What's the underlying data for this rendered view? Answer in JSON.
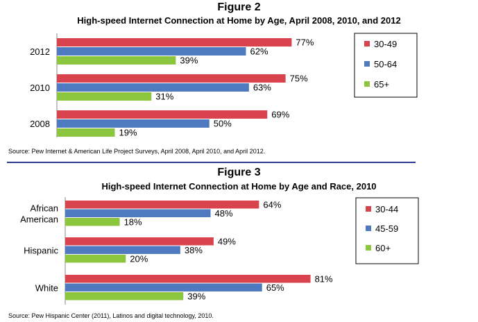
{
  "chart_data": [
    {
      "type": "bar",
      "orientation": "horizontal",
      "figure_label": "Figure 2",
      "title": "High-speed Internet Connection at Home by Age, April 2008, 2010, and 2012",
      "categories": [
        "2012",
        "2010",
        "2008"
      ],
      "series": [
        {
          "name": "30-49",
          "color": "#d9434e",
          "values": [
            77,
            75,
            69
          ],
          "labels": [
            "77%",
            "75%",
            "69%"
          ]
        },
        {
          "name": "50-64",
          "color": "#4f7ac0",
          "values": [
            62,
            63,
            50
          ],
          "labels": [
            "62%",
            "63%",
            "50%"
          ]
        },
        {
          "name": "65+",
          "color": "#8cc63f",
          "values": [
            39,
            31,
            19
          ],
          "labels": [
            "39%",
            "31%",
            "19%"
          ]
        }
      ],
      "xlim": [
        0,
        100
      ],
      "grid": false,
      "legend": "right",
      "source": "Source: Pew Internet & American Life Project Surveys, April 2008, April 2010, and April 2012."
    },
    {
      "type": "bar",
      "orientation": "horizontal",
      "figure_label": "Figure 3",
      "title": "High-speed Internet Connection at Home by Age and Race, 2010",
      "categories": [
        "African\nAmerican",
        "Hispanic",
        "White"
      ],
      "series": [
        {
          "name": "30-44",
          "color": "#d9434e",
          "values": [
            64,
            49,
            81
          ],
          "labels": [
            "64%",
            "49%",
            "81%"
          ]
        },
        {
          "name": "45-59",
          "color": "#4f7ac0",
          "values": [
            48,
            38,
            65
          ],
          "labels": [
            "48%",
            "38%",
            "65%"
          ]
        },
        {
          "name": "60+",
          "color": "#8cc63f",
          "values": [
            18,
            20,
            39
          ],
          "labels": [
            "18%",
            "20%",
            "39%"
          ]
        }
      ],
      "xlim": [
        0,
        100
      ],
      "grid": false,
      "legend": "right",
      "source": "Source: Pew Hispanic Center (2011), Latinos and digital technology, 2010."
    }
  ]
}
